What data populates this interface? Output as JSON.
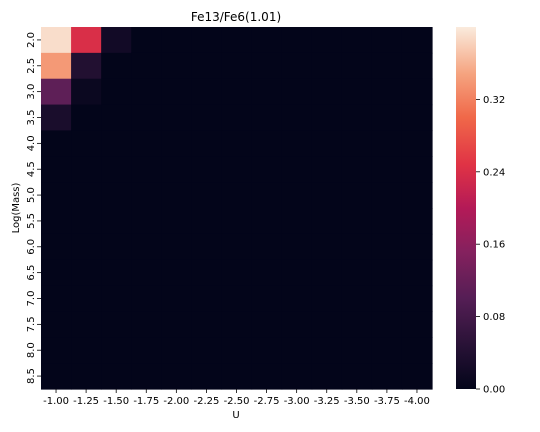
{
  "chart_data": {
    "type": "heatmap",
    "title": "Fe13/Fe6(1.01)",
    "xlabel": "U",
    "ylabel": "Log(Mass)",
    "x_categories": [
      "-1.00",
      "-1.25",
      "-1.50",
      "-1.75",
      "-2.00",
      "-2.25",
      "-2.50",
      "-2.75",
      "-3.00",
      "-3.25",
      "-3.50",
      "-3.75",
      "-4.00"
    ],
    "y_categories": [
      "2.0",
      "2.5",
      "3.0",
      "3.5",
      "4.0",
      "4.5",
      "5.0",
      "5.5",
      "6.0",
      "6.5",
      "7.0",
      "7.5",
      "8.0",
      "8.5"
    ],
    "values": [
      [
        0.39,
        0.24,
        0.02,
        0,
        0,
        0,
        0,
        0,
        0,
        0,
        0,
        0,
        0
      ],
      [
        0.34,
        0.04,
        0,
        0,
        0,
        0,
        0,
        0,
        0,
        0,
        0,
        0,
        0
      ],
      [
        0.11,
        0.01,
        0,
        0,
        0,
        0,
        0,
        0,
        0,
        0,
        0,
        0,
        0
      ],
      [
        0.03,
        0,
        0,
        0,
        0,
        0,
        0,
        0,
        0,
        0,
        0,
        0,
        0
      ],
      [
        0,
        0,
        0,
        0,
        0,
        0,
        0,
        0,
        0,
        0,
        0,
        0,
        0
      ],
      [
        0,
        0,
        0,
        0,
        0,
        0,
        0,
        0,
        0,
        0,
        0,
        0,
        0
      ],
      [
        0,
        0,
        0,
        0,
        0,
        0,
        0,
        0,
        0,
        0,
        0,
        0,
        0
      ],
      [
        0,
        0,
        0,
        0,
        0,
        0,
        0,
        0,
        0,
        0,
        0,
        0,
        0
      ],
      [
        0,
        0,
        0,
        0,
        0,
        0,
        0,
        0,
        0,
        0,
        0,
        0,
        0
      ],
      [
        0,
        0,
        0,
        0,
        0,
        0,
        0,
        0,
        0,
        0,
        0,
        0,
        0
      ],
      [
        0,
        0,
        0,
        0,
        0,
        0,
        0,
        0,
        0,
        0,
        0,
        0,
        0
      ],
      [
        0,
        0,
        0,
        0,
        0,
        0,
        0,
        0,
        0,
        0,
        0,
        0,
        0
      ],
      [
        0,
        0,
        0,
        0,
        0,
        0,
        0,
        0,
        0,
        0,
        0,
        0,
        0
      ],
      [
        0,
        0,
        0,
        0,
        0,
        0,
        0,
        0,
        0,
        0,
        0,
        0,
        0
      ]
    ],
    "colorbar": {
      "range": [
        0,
        0.4
      ],
      "ticks": [
        0.0,
        0.08,
        0.16,
        0.24,
        0.32
      ],
      "tick_labels": [
        "0.00",
        "0.08",
        "0.16",
        "0.24",
        "0.32"
      ],
      "colormap": "rocket"
    },
    "grid": false
  }
}
